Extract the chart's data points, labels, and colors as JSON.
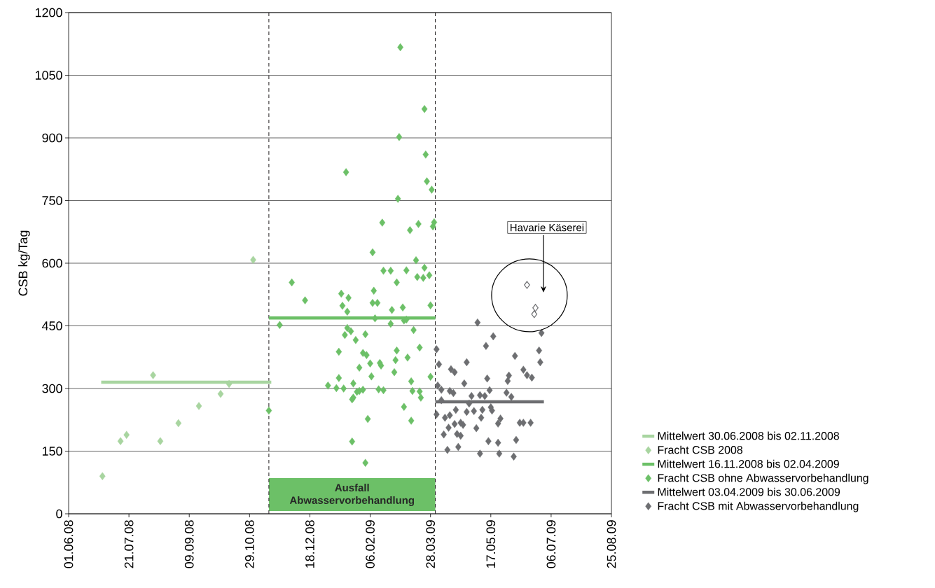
{
  "chart_data": {
    "type": "scatter",
    "ylabel": "CSB kg/Tag",
    "xlim": [
      "2008-06-01",
      "2009-08-25"
    ],
    "xticks": [
      {
        "value": "2008-06-01",
        "label": "01.06.08"
      },
      {
        "value": "2008-07-21",
        "label": "21.07.08"
      },
      {
        "value": "2008-09-09",
        "label": "09.09.08"
      },
      {
        "value": "2008-10-29",
        "label": "29.10.08"
      },
      {
        "value": "2008-12-18",
        "label": "18.12.08"
      },
      {
        "value": "2009-02-06",
        "label": "06.02.09"
      },
      {
        "value": "2009-03-28",
        "label": "28.03.09"
      },
      {
        "value": "2009-05-17",
        "label": "17.05.09"
      },
      {
        "value": "2009-07-06",
        "label": "06.07.09"
      },
      {
        "value": "2009-08-25",
        "label": "25.08.09"
      }
    ],
    "ylim": [
      0,
      1200
    ],
    "yticks": [
      0,
      150,
      300,
      450,
      600,
      750,
      900,
      1050,
      1200
    ],
    "grid": "y",
    "legend": "bottom right",
    "marker": "diamond",
    "series": [
      {
        "name": "Mittelwert 30.06.2008 bis 02.11.2008",
        "type": "line",
        "marker": "none",
        "color": "#a8d5a0",
        "x": [
          "2008-06-28",
          "2008-11-16"
        ],
        "values": [
          315,
          315
        ]
      },
      {
        "name": "Fracht CSB 2008",
        "color": "#a8d5a0",
        "x": [
          "2008-06-29",
          "2008-07-14",
          "2008-07-19",
          "2008-08-10",
          "2008-08-16",
          "2008-08-31",
          "2008-09-17",
          "2008-10-05",
          "2008-10-12",
          "2008-11-01"
        ],
        "values": [
          90,
          174,
          189,
          332,
          174,
          217,
          258,
          287,
          311,
          608
        ]
      },
      {
        "name": "Mittelwert 16.11.2008 bis 02.04.2009",
        "type": "line",
        "marker": "none",
        "color": "#6cc067",
        "x": [
          "2008-11-14",
          "2009-04-01"
        ],
        "values": [
          469,
          469
        ]
      },
      {
        "name": "Fracht CSB ohne Abwasservorbehandlung",
        "color": "#6cc067",
        "x": [
          "2008-11-14",
          "2008-11-23",
          "2008-12-03",
          "2008-12-14",
          "2009-01-02",
          "2009-01-09",
          "2009-01-11",
          "2009-01-11",
          "2009-01-13",
          "2009-01-14",
          "2009-01-15",
          "2009-01-16",
          "2009-01-17",
          "2009-01-18",
          "2009-01-18",
          "2009-01-19",
          "2009-01-21",
          "2009-01-22",
          "2009-01-22",
          "2009-01-23",
          "2009-01-23",
          "2009-01-25",
          "2009-01-26",
          "2009-01-28",
          "2009-01-28",
          "2009-01-31",
          "2009-01-31",
          "2009-02-02",
          "2009-02-02",
          "2009-02-03",
          "2009-02-04",
          "2009-02-06",
          "2009-02-07",
          "2009-02-08",
          "2009-02-08",
          "2009-02-09",
          "2009-02-10",
          "2009-02-12",
          "2009-02-13",
          "2009-02-14",
          "2009-02-15",
          "2009-02-16",
          "2009-02-17",
          "2009-02-17",
          "2009-02-23",
          "2009-02-23",
          "2009-02-24",
          "2009-02-26",
          "2009-02-27",
          "2009-02-28",
          "2009-02-28",
          "2009-03-01",
          "2009-03-02",
          "2009-03-03",
          "2009-03-05",
          "2009-03-06",
          "2009-03-06",
          "2009-03-08",
          "2009-03-08",
          "2009-03-09",
          "2009-03-11",
          "2009-03-12",
          "2009-03-12",
          "2009-03-13",
          "2009-03-14",
          "2009-03-16",
          "2009-03-17",
          "2009-03-18",
          "2009-03-19",
          "2009-03-19",
          "2009-03-20",
          "2009-03-22",
          "2009-03-23",
          "2009-03-23",
          "2009-03-24",
          "2009-03-25",
          "2009-03-27",
          "2009-03-28",
          "2009-03-28",
          "2009-03-29",
          "2009-03-30",
          "2009-03-31"
        ],
        "values": [
          247,
          452,
          554,
          511,
          307,
          301,
          388,
          325,
          527,
          498,
          300,
          428,
          818,
          484,
          445,
          517,
          437,
          274,
          173,
          312,
          278,
          416,
          292,
          350,
          294,
          385,
          297,
          430,
          122,
          380,
          227,
          360,
          329,
          626,
          505,
          534,
          468,
          505,
          298,
          361,
          355,
          697,
          582,
          296,
          582,
          455,
          488,
          339,
          368,
          554,
          391,
          754,
          902,
          1117,
          494,
          463,
          256,
          583,
          465,
          374,
          679,
          317,
          223,
          294,
          440,
          607,
          567,
          694,
          398,
          293,
          278,
          565,
          589,
          969,
          860,
          796,
          571,
          499,
          328,
          776,
          688,
          698
        ]
      },
      {
        "name": "Mittelwert 03.04.2009 bis 30.06.2009",
        "type": "line",
        "marker": "none",
        "color": "#6d6e71",
        "x": [
          "2009-04-01",
          "2009-06-30"
        ],
        "values": [
          268,
          268
        ]
      },
      {
        "name": "Fracht CSB mit Abwasservorbehandlung",
        "color": "#6d6e71",
        "x": [
          "2009-04-02",
          "2009-04-02",
          "2009-04-03",
          "2009-04-04",
          "2009-04-06",
          "2009-04-06",
          "2009-04-08",
          "2009-04-09",
          "2009-04-11",
          "2009-04-12",
          "2009-04-13",
          "2009-04-13",
          "2009-04-14",
          "2009-04-16",
          "2009-04-17",
          "2009-04-17",
          "2009-04-18",
          "2009-04-19",
          "2009-04-20",
          "2009-04-22",
          "2009-04-22",
          "2009-04-24",
          "2009-04-25",
          "2009-04-27",
          "2009-04-27",
          "2009-04-29",
          "2009-05-01",
          "2009-05-03",
          "2009-05-05",
          "2009-05-06",
          "2009-05-08",
          "2009-05-08",
          "2009-05-09",
          "2009-05-10",
          "2009-05-12",
          "2009-05-13",
          "2009-05-14",
          "2009-05-15",
          "2009-05-16",
          "2009-05-17",
          "2009-05-18",
          "2009-05-19",
          "2009-05-23",
          "2009-05-23",
          "2009-05-24",
          "2009-05-25",
          "2009-05-30",
          "2009-05-31",
          "2009-06-01",
          "2009-06-03",
          "2009-06-05",
          "2009-06-06",
          "2009-06-07",
          "2009-06-10",
          "2009-06-13",
          "2009-06-13",
          "2009-06-16",
          "2009-06-19",
          "2009-06-20",
          "2009-06-26",
          "2009-06-27",
          "2009-06-28"
        ],
        "values": [
          394,
          238,
          307,
          358,
          297,
          272,
          190,
          230,
          153,
          206,
          294,
          236,
          346,
          289,
          339,
          215,
          249,
          191,
          160,
          218,
          187,
          213,
          312,
          363,
          244,
          264,
          282,
          246,
          205,
          458,
          284,
          144,
          230,
          249,
          282,
          402,
          324,
          174,
          296,
          255,
          247,
          425,
          216,
          170,
          144,
          228,
          290,
          318,
          331,
          280,
          137,
          378,
          177,
          218,
          345,
          218,
          332,
          218,
          326,
          391,
          363,
          433
        ]
      },
      {
        "color": "#6d6e71",
        "x": [
          "2009-06-16",
          "2009-06-22",
          "2009-06-23"
        ],
        "values": [
          548,
          478,
          493
        ]
      }
    ],
    "ref_lines": [
      {
        "axis": "x",
        "value": "2008-11-14",
        "line_style": "dashed",
        "color": "#231f20"
      },
      {
        "axis": "x",
        "value": "2009-04-01",
        "line_style": "dashed",
        "color": "#231f20"
      }
    ],
    "bands": [
      {
        "axis": "x",
        "from": "2008-11-14",
        "to": "2009-04-01",
        "label": "Ausfall Abwasservorbehandlung",
        "color": "#6cc067"
      }
    ],
    "annotations": [
      "Havarie Käserei"
    ]
  }
}
